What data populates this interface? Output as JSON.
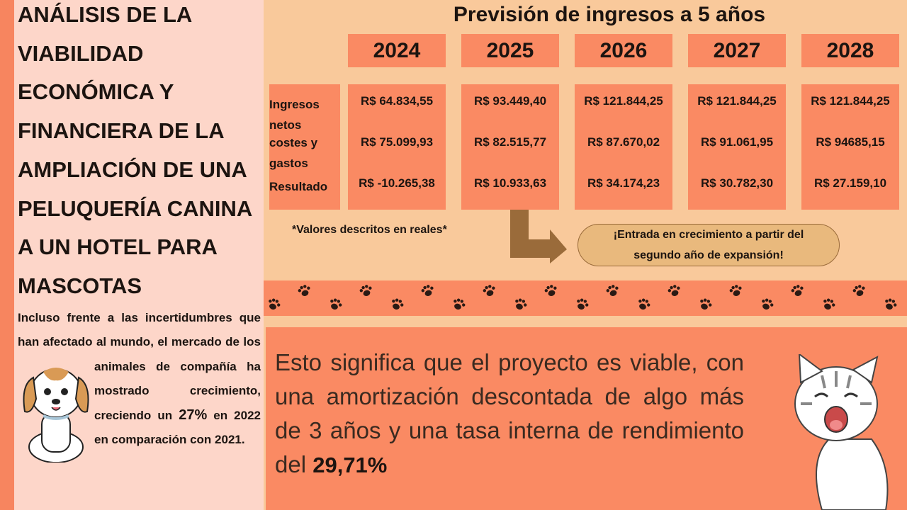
{
  "sidebar": {
    "title": "ANÁLISIS DE LA VIABILIDAD ECONÓMICA Y FINANCIERA DE LA AMPLIACIÓN DE UNA PELUQUERÍA CANINA A UN HOTEL PARA MASCOTAS",
    "paragraph": [
      "Incluso frente a las incertidumbres que han afectado al mundo, el mercado de los animales de compañía ha",
      "mostrado crecimiento, creciendo un",
      "27%",
      "en 2022 en comparación con 2021."
    ]
  },
  "forecast": {
    "title": "Previsión de ingresos a 5 años",
    "row_labels": [
      "Ingresos netos",
      "costes y gastos",
      "Resultado"
    ],
    "columns": [
      {
        "year": "2024",
        "values": [
          "R$ 64.834,55",
          "R$ 75.099,93",
          "R$ -10.265,38"
        ]
      },
      {
        "year": "2025",
        "values": [
          "R$ 93.449,40",
          "R$ 82.515,77",
          "R$ 10.933,63"
        ]
      },
      {
        "year": "2026",
        "values": [
          "R$ 121.844,25",
          "R$ 87.670,02",
          "R$ 34.174,23"
        ]
      },
      {
        "year": "2027",
        "values": [
          "R$ 121.844,25",
          "R$ 91.061,95",
          "R$ 30.782,30"
        ]
      },
      {
        "year": "2028",
        "values": [
          "R$ 121.844,25",
          "R$ 94685,15",
          "R$ 27.159,10"
        ]
      }
    ],
    "note": "*Valores descritos en reales*",
    "callout": "¡Entrada en crecimiento a partir del segundo año de expansión!"
  },
  "conclusion": {
    "text": "Esto significa que el proyecto es viable, con una amortización descontada de algo más de 3 años y una tasa interna de rendimiento del",
    "highlight": "29,71%"
  }
}
